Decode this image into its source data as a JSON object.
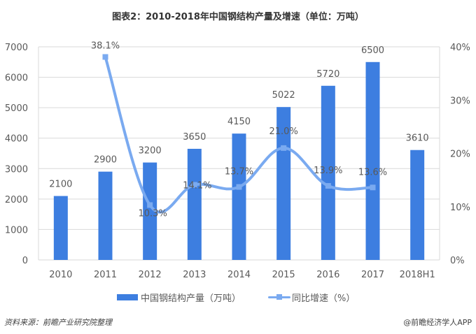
{
  "title": "图表2：2010-2018年中国钢结构产量及增速（单位：万吨）",
  "colors": {
    "bar": "#3d7ee0",
    "line": "#7aaaf0",
    "grid": "#d9d9d9",
    "text": "#595959"
  },
  "legend": {
    "bar_label": "中国钢结构产量（万吨）",
    "line_label": "同比增速（%）"
  },
  "footer": {
    "source": "资料来源：前瞻产业研究院整理",
    "credit": "@前瞻经济学人APP"
  },
  "watermark": "前瞻产业研究院",
  "chart_data": {
    "type": "bar",
    "title": "图表2：2010-2018年中国钢结构产量及增速（单位：万吨）",
    "categories": [
      "2010",
      "2011",
      "2012",
      "2013",
      "2014",
      "2015",
      "2016",
      "2017",
      "2018H1"
    ],
    "series": [
      {
        "name": "中国钢结构产量（万吨）",
        "type": "bar",
        "axis": "left",
        "values": [
          2100,
          2900,
          3200,
          3650,
          4150,
          5022,
          5720,
          6500,
          3610
        ],
        "labels": [
          "2100",
          "2900",
          "3200",
          "3650",
          "4150",
          "5022",
          "5720",
          "6500",
          "3610"
        ]
      },
      {
        "name": "同比增速（%）",
        "type": "line",
        "axis": "right",
        "smooth": true,
        "values": [
          null,
          38.1,
          10.3,
          14.1,
          13.7,
          21.0,
          13.9,
          13.6,
          null
        ],
        "labels": [
          null,
          "38.1%",
          "10.3%",
          "14.1%",
          "13.7%",
          "21.0%",
          "13.9%",
          "13.6%",
          null
        ]
      }
    ],
    "left_axis": {
      "ylim": [
        0,
        7000
      ],
      "ticks": [
        "0",
        "1000",
        "2000",
        "3000",
        "4000",
        "5000",
        "6000",
        "7000"
      ]
    },
    "right_axis": {
      "ylim": [
        0,
        40
      ],
      "ticks": [
        "0%",
        "10%",
        "20%",
        "30%",
        "40%"
      ]
    },
    "xlabel": "",
    "ylabel": "",
    "grid": true,
    "legend_position": "bottom"
  }
}
